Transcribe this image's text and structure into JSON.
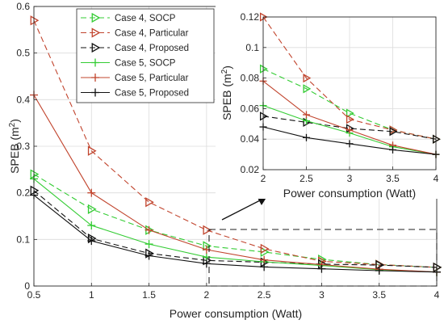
{
  "chart_data": [
    {
      "id": "main",
      "type": "line",
      "title": "",
      "xlabel": "Power consumption (Watt)",
      "ylabel_base": "SPEB (m",
      "ylabel_sup": "2",
      "ylabel_close": ")",
      "xlim": [
        0.5,
        4
      ],
      "ylim": [
        0,
        0.6
      ],
      "xticks": [
        0.5,
        1,
        1.5,
        2,
        2.5,
        3,
        3.5,
        4
      ],
      "xtick_labels": [
        "0.5",
        "1",
        "1.5",
        "2",
        "2.5",
        "3",
        "3.5",
        "4"
      ],
      "yticks": [
        0,
        0.1,
        0.2,
        0.3,
        0.4,
        0.5,
        0.6
      ],
      "ytick_labels": [
        "0",
        "0.1",
        "0.2",
        "0.3",
        "0.4",
        "0.5",
        "0.6"
      ],
      "grid": true,
      "legend_position": "top-left",
      "series": [
        {
          "name": "Case 4, SOCP",
          "color": "#33cc33",
          "dash": "dashed",
          "marker": "triangle-right",
          "x": [
            0.5,
            1,
            1.5,
            2,
            2.5,
            3,
            3.5,
            4
          ],
          "y": [
            0.24,
            0.165,
            0.12,
            0.086,
            0.073,
            0.057,
            0.046,
            0.04
          ]
        },
        {
          "name": "Case 4, Particular",
          "color": "#c1442d",
          "dash": "dashed",
          "marker": "triangle-right",
          "x": [
            0.5,
            1,
            1.5,
            2,
            2.5,
            3,
            3.5,
            4
          ],
          "y": [
            0.57,
            0.29,
            0.18,
            0.12,
            0.08,
            0.053,
            0.046,
            0.04
          ]
        },
        {
          "name": "Case 4, Proposed",
          "color": "#111111",
          "dash": "dashed",
          "marker": "triangle-right",
          "x": [
            0.5,
            1,
            1.5,
            2,
            2.5,
            3,
            3.5,
            4
          ],
          "y": [
            0.205,
            0.102,
            0.07,
            0.055,
            0.051,
            0.047,
            0.045,
            0.04
          ]
        },
        {
          "name": "Case 5, SOCP",
          "color": "#33cc33",
          "dash": "solid",
          "marker": "plus",
          "x": [
            0.5,
            1,
            1.5,
            2,
            2.5,
            3,
            3.5,
            4
          ],
          "y": [
            0.23,
            0.13,
            0.09,
            0.062,
            0.052,
            0.044,
            0.035,
            0.03
          ]
        },
        {
          "name": "Case 5, Particular",
          "color": "#c1442d",
          "dash": "solid",
          "marker": "plus",
          "x": [
            0.5,
            1,
            1.5,
            2,
            2.5,
            3,
            3.5,
            4
          ],
          "y": [
            0.41,
            0.2,
            0.12,
            0.078,
            0.056,
            0.046,
            0.036,
            0.03
          ]
        },
        {
          "name": "Case 5, Proposed",
          "color": "#111111",
          "dash": "solid",
          "marker": "plus",
          "x": [
            0.5,
            1,
            1.5,
            2,
            2.5,
            3,
            3.5,
            4
          ],
          "y": [
            0.195,
            0.097,
            0.065,
            0.048,
            0.041,
            0.037,
            0.033,
            0.03
          ]
        }
      ]
    },
    {
      "id": "inset",
      "type": "line",
      "title": "",
      "xlabel": "Power consumption (Watt)",
      "ylabel_base": "SPEB (m",
      "ylabel_sup": "2",
      "ylabel_close": ")",
      "xlim": [
        2,
        4
      ],
      "ylim": [
        0.02,
        0.12
      ],
      "xticks": [
        2,
        2.5,
        3,
        3.5,
        4
      ],
      "xtick_labels": [
        "2",
        "2.5",
        "3",
        "3.5",
        "4"
      ],
      "yticks": [
        0.02,
        0.04,
        0.06,
        0.08,
        0.1,
        0.12
      ],
      "ytick_labels": [
        "0.02",
        "0.04",
        "0.06",
        "0.08",
        "0.1",
        "0.12"
      ],
      "grid": true,
      "series_ref": "main",
      "x_range": [
        2,
        4
      ]
    }
  ]
}
